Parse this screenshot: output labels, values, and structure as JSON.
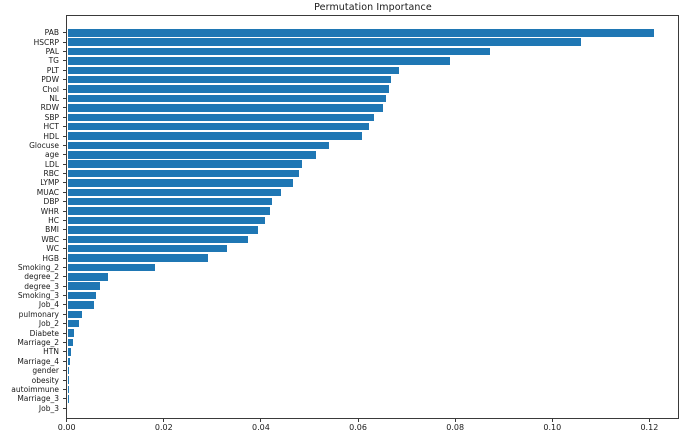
{
  "chart_data": {
    "type": "bar",
    "orientation": "horizontal",
    "title": "Permutation Importance",
    "xlabel": "",
    "ylabel": "",
    "grid": false,
    "legend": null,
    "bar_color": "#1f77b4",
    "xlim": [
      0,
      0.1261
    ],
    "xticks": [
      "0.00",
      "0.02",
      "0.04",
      "0.06",
      "0.08",
      "0.10",
      "0.12"
    ],
    "xtick_values": [
      0.0,
      0.02,
      0.04,
      0.06,
      0.08,
      0.1,
      0.12
    ],
    "categories": [
      "PAB",
      "HSCRP",
      "PAL",
      "TG",
      "PLT",
      "PDW",
      "Chol",
      "NL",
      "RDW",
      "SBP",
      "HCT",
      "HDL",
      "Glocuse",
      "age",
      "LDL",
      "RBC",
      "LYMP",
      "MUAC",
      "DBP",
      "WHR",
      "HC",
      "BMI",
      "WBC",
      "WC",
      "HGB",
      "Smoking_2",
      "degree_2",
      "degree_3",
      "Smoking_3",
      "Job_4",
      "pulmonary",
      "Job_2",
      "Diabete",
      "Marriage_2",
      "HTN",
      "Marriage_4",
      "gender",
      "obesity",
      "autoimmune",
      "Marriage_3",
      "Job_3"
    ],
    "values": [
      0.1207,
      0.1058,
      0.0871,
      0.0788,
      0.0682,
      0.0667,
      0.0662,
      0.0655,
      0.0649,
      0.0632,
      0.062,
      0.0607,
      0.0538,
      0.0512,
      0.0482,
      0.0477,
      0.0464,
      0.044,
      0.0421,
      0.0417,
      0.0406,
      0.0393,
      0.0372,
      0.0328,
      0.0289,
      0.018,
      0.0084,
      0.0066,
      0.0059,
      0.0054,
      0.003,
      0.0024,
      0.0013,
      0.0012,
      0.0008,
      0.0005,
      0.00015,
      8e-05,
      4e-05,
      2e-05,
      1e-05
    ]
  }
}
